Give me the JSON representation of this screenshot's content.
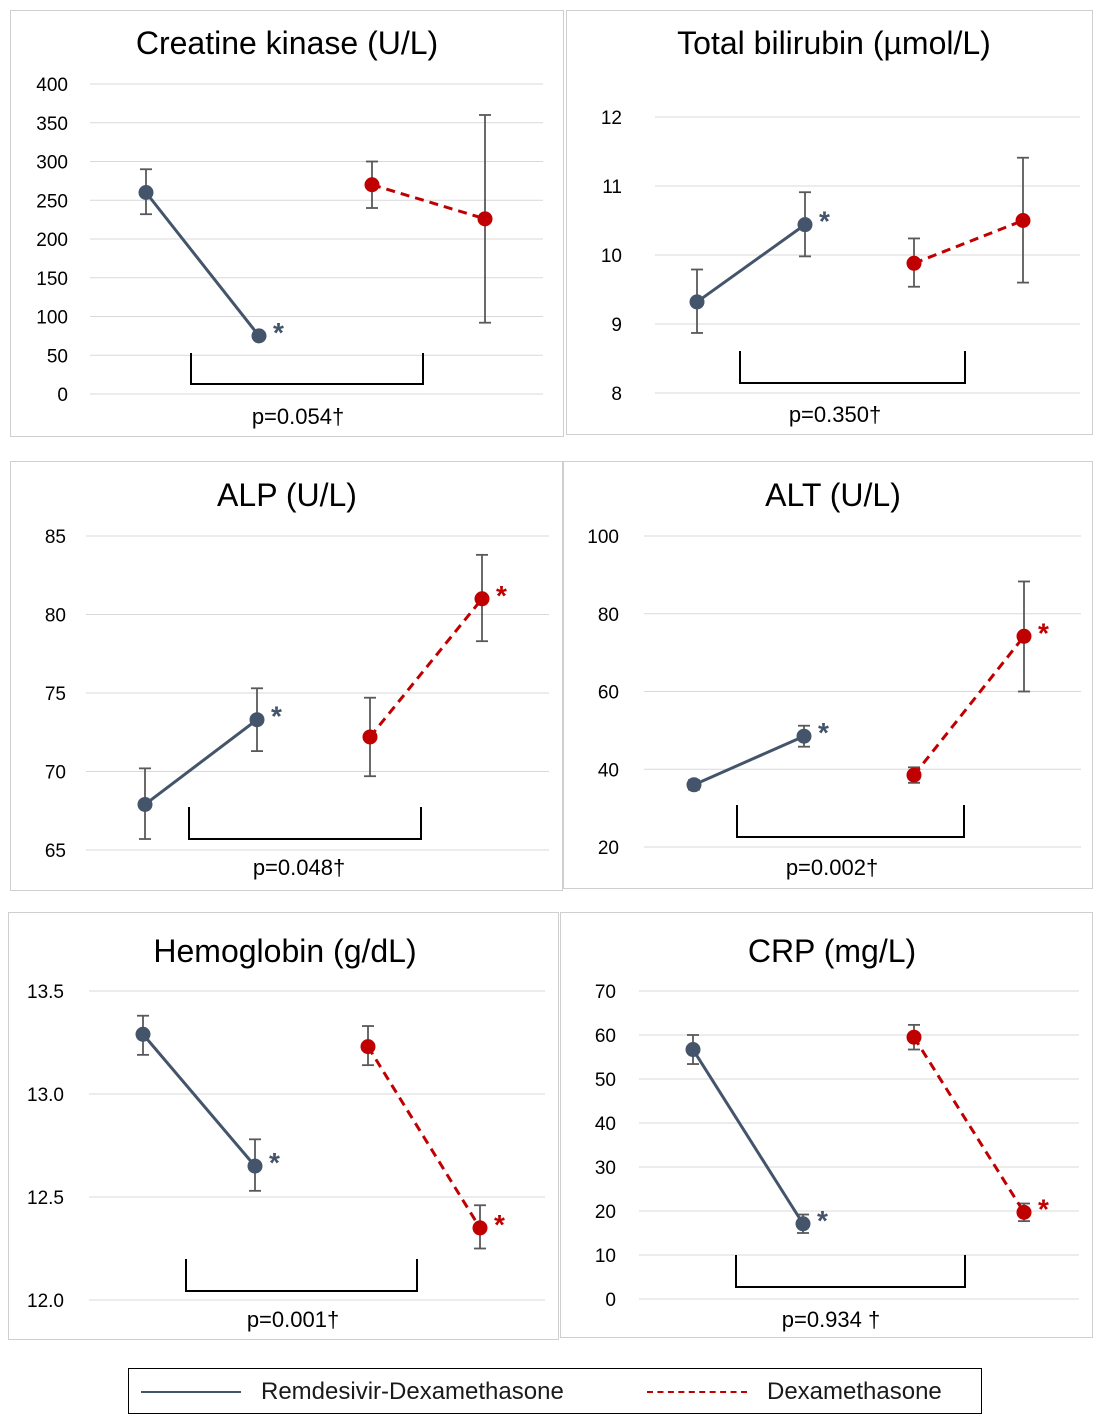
{
  "chart_data": [
    {
      "type": "line",
      "title": "Creatine kinase (U/L)",
      "ylim": [
        0,
        400
      ],
      "yticks": [
        "0",
        "50",
        "100",
        "150",
        "200",
        "250",
        "300",
        "350",
        "400"
      ],
      "grid": true,
      "series": [
        {
          "name": "Remdesivir-Dexamethasone",
          "values": [
            260,
            75
          ],
          "err_low": [
            232,
            75
          ],
          "err_high": [
            290,
            75
          ],
          "significant": [
            false,
            true
          ]
        },
        {
          "name": "Dexamethasone",
          "values": [
            270,
            226
          ],
          "err_low": [
            240,
            92
          ],
          "err_high": [
            300,
            360
          ],
          "significant": [
            false,
            false
          ]
        }
      ],
      "p_value": "p=0.054†"
    },
    {
      "type": "line",
      "title": "Total bilirubin (µmol/L)",
      "ylim": [
        8,
        12
      ],
      "yticks": [
        "8",
        "9",
        "10",
        "11",
        "12"
      ],
      "grid": true,
      "series": [
        {
          "name": "Remdesivir-Dexamethasone",
          "values": [
            9.32,
            10.44
          ],
          "err_low": [
            8.87,
            9.98
          ],
          "err_high": [
            9.79,
            10.91
          ],
          "significant": [
            false,
            true
          ]
        },
        {
          "name": "Dexamethasone",
          "values": [
            9.88,
            10.5
          ],
          "err_low": [
            9.54,
            9.6
          ],
          "err_high": [
            10.24,
            11.41
          ],
          "significant": [
            false,
            false
          ]
        }
      ],
      "p_value": "p=0.350†"
    },
    {
      "type": "line",
      "title": "ALP (U/L)",
      "ylim": [
        65,
        85
      ],
      "yticks": [
        "65",
        "70",
        "75",
        "80",
        "85"
      ],
      "grid": true,
      "series": [
        {
          "name": "Remdesivir-Dexamethasone",
          "values": [
            67.9,
            73.3
          ],
          "err_low": [
            65.7,
            71.3
          ],
          "err_high": [
            70.2,
            75.3
          ],
          "significant": [
            false,
            true
          ]
        },
        {
          "name": "Dexamethasone",
          "values": [
            72.2,
            81.0
          ],
          "err_low": [
            69.7,
            78.3
          ],
          "err_high": [
            74.7,
            83.8
          ],
          "significant": [
            false,
            true
          ]
        }
      ],
      "p_value": "p=0.048†"
    },
    {
      "type": "line",
      "title": "ALT (U/L)",
      "ylim": [
        20,
        100
      ],
      "yticks": [
        "20",
        "40",
        "60",
        "80",
        "100"
      ],
      "grid": true,
      "series": [
        {
          "name": "Remdesivir-Dexamethasone",
          "values": [
            36,
            48.5
          ],
          "err_low": [
            34.8,
            45.8
          ],
          "err_high": [
            37.2,
            51.2
          ],
          "significant": [
            false,
            true
          ]
        },
        {
          "name": "Dexamethasone",
          "values": [
            38.5,
            74.2
          ],
          "err_low": [
            36.5,
            60
          ],
          "err_high": [
            40.5,
            88.3
          ],
          "significant": [
            false,
            true
          ]
        }
      ],
      "p_value": "p=0.002†"
    },
    {
      "type": "line",
      "title": "Hemoglobin (g/dL)",
      "ylim": [
        12.0,
        13.5
      ],
      "yticks": [
        "12.0",
        "12.5",
        "13.0",
        "13.5"
      ],
      "grid": true,
      "series": [
        {
          "name": "Remdesivir-Dexamethasone",
          "values": [
            13.29,
            12.65
          ],
          "err_low": [
            13.19,
            12.53
          ],
          "err_high": [
            13.38,
            12.78
          ],
          "significant": [
            false,
            true
          ]
        },
        {
          "name": "Dexamethasone",
          "values": [
            13.23,
            12.35
          ],
          "err_low": [
            13.14,
            12.25
          ],
          "err_high": [
            13.33,
            12.46
          ],
          "significant": [
            false,
            true
          ]
        }
      ],
      "p_value": "p=0.001†"
    },
    {
      "type": "line",
      "title": "CRP (mg/L)",
      "ylim": [
        0,
        70
      ],
      "yticks": [
        "0",
        "10",
        "20",
        "30",
        "40",
        "50",
        "60",
        "70"
      ],
      "grid": true,
      "series": [
        {
          "name": "Remdesivir-Dexamethasone",
          "values": [
            56.7,
            17.1
          ],
          "err_low": [
            53.4,
            15
          ],
          "err_high": [
            60,
            19.2
          ],
          "significant": [
            false,
            true
          ]
        },
        {
          "name": "Dexamethasone",
          "values": [
            59.5,
            19.7
          ],
          "err_low": [
            56.7,
            17.7
          ],
          "err_high": [
            62.3,
            21.7
          ],
          "significant": [
            false,
            true
          ]
        }
      ],
      "p_value": "p=0.934 †"
    }
  ],
  "legend": {
    "items": [
      {
        "label": "Remdesivir-Dexamethasone",
        "style": "solid"
      },
      {
        "label": "Dexamethasone",
        "style": "dashed"
      }
    ]
  },
  "colors": {
    "remdesivir_dexamethasone": "#44546a",
    "dexamethasone": "#c00000",
    "error_bar": "#595959",
    "gridline": "#d9d9d9",
    "bracket": "#000000"
  },
  "significance_marker": "*"
}
